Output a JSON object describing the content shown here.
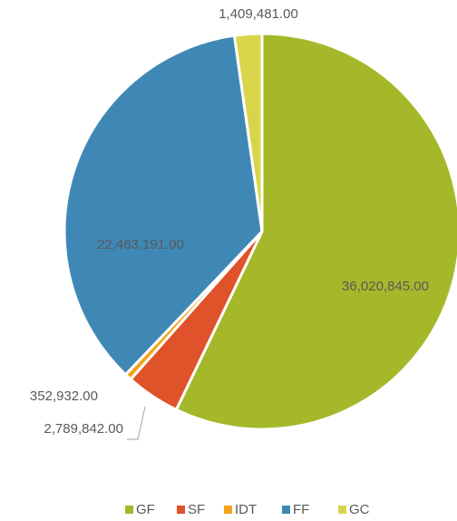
{
  "chart_data": {
    "type": "pie",
    "categories": [
      "GF",
      "SF",
      "IDT",
      "FF",
      "GC"
    ],
    "values": [
      36020845,
      2789842,
      352932,
      22463191,
      1409481
    ],
    "value_labels": [
      "36,020,845.00",
      "2,789,842.00",
      "352,932.00",
      "22,463,191.00",
      "1,409,481.00"
    ],
    "colors": [
      "#a5b82a",
      "#e0522a",
      "#f5a31a",
      "#3f88b5",
      "#d9d54a"
    ],
    "legend": "bottom"
  }
}
